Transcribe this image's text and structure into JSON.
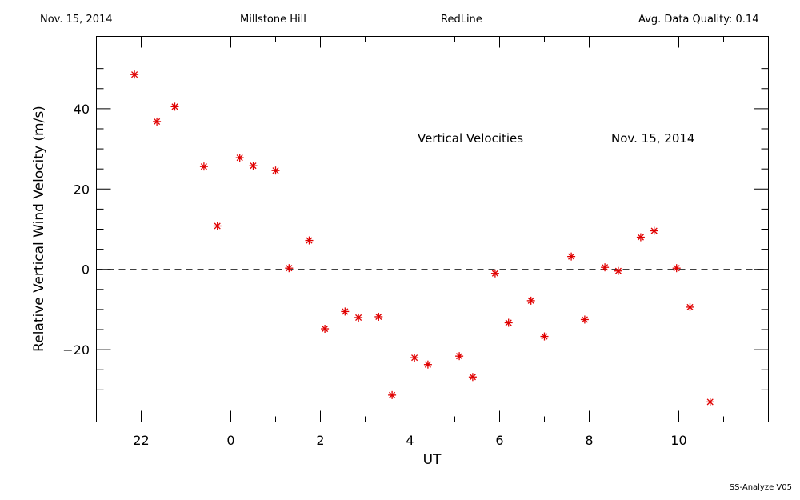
{
  "header": {
    "date": "Nov. 15, 2014",
    "site": "Millstone Hill",
    "line": "RedLine",
    "quality": "Avg. Data Quality: 0.14"
  },
  "footer": "SS-Analyze V05",
  "chart_data": {
    "type": "scatter",
    "annotations": [
      "Vertical Velocities",
      "Nov. 15, 2014"
    ],
    "xlabel": "UT",
    "ylabel": "Relative Vertical Wind Velocity (m/s)",
    "x_range_hours_since_2200": [
      -1.0,
      14.0
    ],
    "y_range": [
      -38,
      58
    ],
    "x_ticks": [
      {
        "label": "22"
      },
      {
        "label": "0"
      },
      {
        "label": "2"
      },
      {
        "label": "4"
      },
      {
        "label": "6"
      },
      {
        "label": "8"
      },
      {
        "label": "10"
      }
    ],
    "y_ticks": [
      {
        "label": "−20"
      },
      {
        "label": "0"
      },
      {
        "label": "20"
      },
      {
        "label": "40"
      }
    ],
    "reference_line": 0,
    "marker_color": "#e00000",
    "marker": "asterisk",
    "series": [
      {
        "points": [
          [
            -0.15,
            48.5
          ],
          [
            0.35,
            36.8
          ],
          [
            0.75,
            40.5
          ],
          [
            1.4,
            25.6
          ],
          [
            1.7,
            10.8
          ],
          [
            2.2,
            27.8
          ],
          [
            2.5,
            25.8
          ],
          [
            3.0,
            24.6
          ],
          [
            3.3,
            0.3
          ],
          [
            3.75,
            7.2
          ],
          [
            4.1,
            -14.8
          ],
          [
            4.55,
            -10.5
          ],
          [
            4.85,
            -12.0
          ],
          [
            5.3,
            -11.8
          ],
          [
            5.6,
            -31.3
          ],
          [
            6.1,
            -22.0
          ],
          [
            6.4,
            -23.7
          ],
          [
            7.1,
            -21.6
          ],
          [
            7.4,
            -26.8
          ],
          [
            7.9,
            -1.0
          ],
          [
            8.2,
            -13.3
          ],
          [
            8.7,
            -7.8
          ],
          [
            9.0,
            -16.7
          ],
          [
            9.6,
            3.2
          ],
          [
            9.9,
            -12.5
          ],
          [
            10.35,
            0.5
          ],
          [
            10.65,
            -0.4
          ],
          [
            11.15,
            8.0
          ],
          [
            11.45,
            9.6
          ],
          [
            11.95,
            0.3
          ],
          [
            12.25,
            -9.4
          ],
          [
            12.7,
            -33.0
          ]
        ]
      }
    ]
  }
}
